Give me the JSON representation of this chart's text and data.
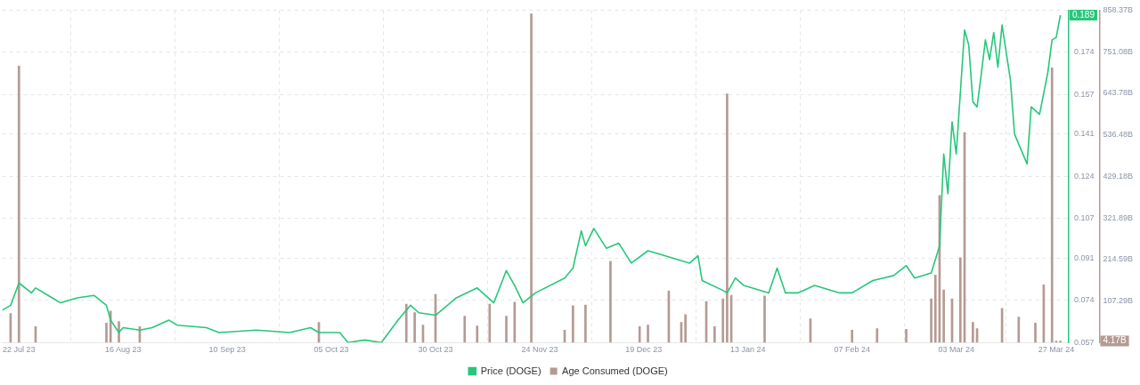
{
  "chart_data": {
    "type": "line",
    "xlim": [
      "2023-07-18",
      "2024-03-30"
    ],
    "xticks": [
      {
        "value": "2023-07-22",
        "label": "22 Jul 23"
      },
      {
        "value": "2023-08-16",
        "label": "16 Aug 23"
      },
      {
        "value": "2023-09-10",
        "label": "10 Sep 23"
      },
      {
        "value": "2023-10-05",
        "label": "05 Oct 23"
      },
      {
        "value": "2023-10-30",
        "label": "30 Oct 23"
      },
      {
        "value": "2023-11-24",
        "label": "24 Nov 23"
      },
      {
        "value": "2023-12-19",
        "label": "19 Dec 23"
      },
      {
        "value": "2024-01-13",
        "label": "13 Jan 24"
      },
      {
        "value": "2024-02-07",
        "label": "07 Feb 24"
      },
      {
        "value": "2024-03-03",
        "label": "03 Mar 24"
      },
      {
        "value": "2024-03-27",
        "label": "27 Mar 24"
      }
    ],
    "ylim": [
      0.057,
      0.191
    ],
    "yticks": [
      0.057,
      0.074,
      0.091,
      0.107,
      0.124,
      0.141,
      0.157,
      0.174,
      {
        "value": 0.191,
        "label": null
      }
    ],
    "y2lim": [
      0,
      858.37
    ],
    "y2ticks": [
      {
        "value": 107.29,
        "label": "107.29B"
      },
      {
        "value": 214.59,
        "label": "214.59B"
      },
      {
        "value": 321.89,
        "label": "321.89B"
      },
      {
        "value": 429.18,
        "label": "429.18B"
      },
      {
        "value": 536.48,
        "label": "536.48B"
      },
      {
        "value": 643.78,
        "label": "643.78B"
      },
      {
        "value": 751.08,
        "label": "751.08B"
      },
      {
        "value": 858.37,
        "label": "858.37B"
      }
    ],
    "grid": true,
    "legend": "bottom",
    "line_style": "solid",
    "annotations": [
      "0.189",
      "4.17B"
    ],
    "series": [
      {
        "name": "Price (DOGE)",
        "color": "#26c77a",
        "x": [
          "2023-07-18",
          "2023-07-20",
          "2023-07-22",
          "2023-07-25",
          "2023-07-26",
          "2023-07-30",
          "2023-08-01",
          "2023-08-05",
          "2023-08-09",
          "2023-08-12",
          "2023-08-13",
          "2023-08-15",
          "2023-08-16",
          "2023-08-20",
          "2023-08-23",
          "2023-08-27",
          "2023-08-29",
          "2023-09-05",
          "2023-09-08",
          "2023-09-17",
          "2023-09-25",
          "2023-09-30",
          "2023-10-02",
          "2023-10-07",
          "2023-10-09",
          "2023-10-13",
          "2023-10-17",
          "2023-10-21",
          "2023-10-24",
          "2023-10-26",
          "2023-10-30",
          "2023-11-04",
          "2023-11-09",
          "2023-11-13",
          "2023-11-16",
          "2023-11-18",
          "2023-11-20",
          "2023-11-23",
          "2023-11-30",
          "2023-12-02",
          "2023-12-04",
          "2023-12-05",
          "2023-12-07",
          "2023-12-10",
          "2023-12-13",
          "2023-12-16",
          "2023-12-20",
          "2023-12-24",
          "2023-12-30",
          "2024-01-01",
          "2024-01-02",
          "2024-01-07",
          "2024-01-08",
          "2024-01-10",
          "2024-01-12",
          "2024-01-18",
          "2024-01-20",
          "2024-01-22",
          "2024-01-25",
          "2024-01-29",
          "2024-02-04",
          "2024-02-07",
          "2024-02-12",
          "2024-02-17",
          "2024-02-20",
          "2024-02-22",
          "2024-02-26",
          "2024-02-28",
          "2024-02-29",
          "2024-03-01",
          "2024-03-02",
          "2024-03-03",
          "2024-03-05",
          "2024-03-06",
          "2024-03-07",
          "2024-03-08",
          "2024-03-09",
          "2024-03-10",
          "2024-03-11",
          "2024-03-12",
          "2024-03-13",
          "2024-03-14",
          "2024-03-16",
          "2024-03-17",
          "2024-03-20",
          "2024-03-21",
          "2024-03-23",
          "2024-03-25",
          "2024-03-26",
          "2024-03-27",
          "2024-03-28"
        ],
        "values": [
          0.07,
          0.072,
          0.081,
          0.077,
          0.079,
          0.075,
          0.073,
          0.075,
          0.076,
          0.072,
          0.066,
          0.061,
          0.063,
          0.062,
          0.063,
          0.066,
          0.064,
          0.063,
          0.061,
          0.062,
          0.061,
          0.063,
          0.061,
          0.061,
          0.057,
          0.058,
          0.057,
          0.066,
          0.072,
          0.069,
          0.068,
          0.075,
          0.079,
          0.073,
          0.086,
          0.08,
          0.073,
          0.077,
          0.083,
          0.087,
          0.102,
          0.096,
          0.103,
          0.095,
          0.097,
          0.089,
          0.094,
          0.092,
          0.089,
          0.092,
          0.082,
          0.078,
          0.077,
          0.083,
          0.08,
          0.077,
          0.087,
          0.077,
          0.077,
          0.08,
          0.077,
          0.077,
          0.082,
          0.084,
          0.088,
          0.083,
          0.085,
          0.096,
          0.133,
          0.117,
          0.146,
          0.133,
          0.183,
          0.177,
          0.154,
          0.152,
          0.165,
          0.179,
          0.171,
          0.182,
          0.168,
          0.185,
          0.163,
          0.141,
          0.129,
          0.152,
          0.149,
          0.166,
          0.179,
          0.18,
          0.189
        ]
      },
      {
        "name": "Age Consumed (DOGE)",
        "type": "bar",
        "axis": "y2",
        "color": "#b59a93",
        "x": [
          "2023-07-20",
          "2023-07-22",
          "2023-07-26",
          "2023-08-12",
          "2023-08-13",
          "2023-08-15",
          "2023-08-20",
          "2023-10-02",
          "2023-10-23",
          "2023-10-25",
          "2023-10-27",
          "2023-10-30",
          "2023-11-06",
          "2023-11-09",
          "2023-11-12",
          "2023-11-16",
          "2023-11-18",
          "2023-11-22",
          "2023-11-30",
          "2023-12-02",
          "2023-12-05",
          "2023-12-11",
          "2023-12-18",
          "2023-12-20",
          "2023-12-25",
          "2023-12-28",
          "2023-12-29",
          "2024-01-03",
          "2024-01-05",
          "2024-01-07",
          "2024-01-08",
          "2024-01-09",
          "2024-01-17",
          "2024-01-28",
          "2024-02-07",
          "2024-02-13",
          "2024-02-20",
          "2024-02-26",
          "2024-02-27",
          "2024-02-28",
          "2024-02-29",
          "2024-03-02",
          "2024-03-04",
          "2024-03-05",
          "2024-03-07",
          "2024-03-08",
          "2024-03-14",
          "2024-03-18",
          "2024-03-22",
          "2024-03-24",
          "2024-03-26",
          "2024-03-27",
          "2024-03-28"
        ],
        "values": [
          75,
          714,
          41,
          50,
          81,
          54,
          41,
          52,
          99,
          77,
          45,
          124,
          68,
          43,
          99,
          68,
          104,
          849,
          32,
          95,
          97,
          210,
          41,
          45,
          133,
          52,
          72,
          106,
          41,
          113,
          642,
          122,
          120,
          61,
          32,
          36,
          34,
          113,
          174,
          380,
          136,
          113,
          219,
          542,
          52,
          36,
          88,
          66,
          50,
          149,
          709,
          4,
          4
        ]
      }
    ]
  }
}
